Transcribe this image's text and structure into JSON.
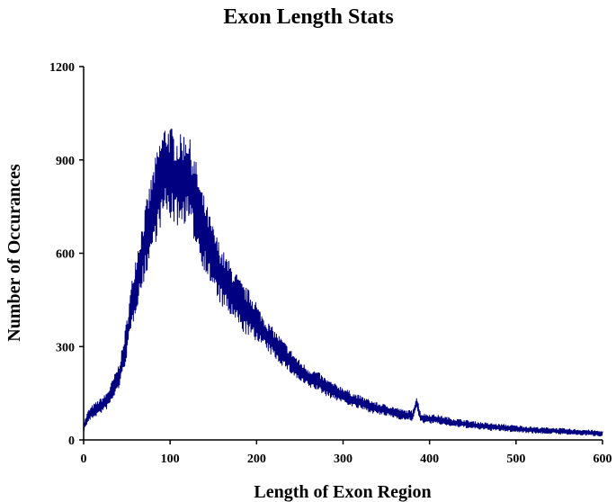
{
  "chart_data": {
    "type": "line",
    "title": "Exon Length Stats",
    "xlabel": "Length of Exon Region",
    "ylabel": "Number of Occurances",
    "xlim": [
      0,
      600
    ],
    "ylim": [
      0,
      1200
    ],
    "xticks": [
      "0",
      "100",
      "200",
      "300",
      "400",
      "500",
      "600"
    ],
    "yticks": [
      "0",
      "300",
      "600",
      "900",
      "1200"
    ],
    "grid": false,
    "legend": "none",
    "series": [
      {
        "color": "#000080",
        "x": [
          0,
          5,
          10,
          15,
          20,
          25,
          30,
          35,
          40,
          45,
          50,
          55,
          60,
          65,
          70,
          75,
          80,
          85,
          90,
          95,
          100,
          105,
          110,
          115,
          120,
          125,
          130,
          135,
          140,
          145,
          150,
          155,
          160,
          165,
          170,
          175,
          180,
          185,
          190,
          195,
          200,
          210,
          220,
          230,
          240,
          250,
          260,
          270,
          280,
          290,
          300,
          310,
          320,
          330,
          340,
          350,
          360,
          370,
          380,
          385,
          390,
          400,
          410,
          420,
          430,
          440,
          450,
          460,
          470,
          480,
          490,
          500,
          510,
          520,
          530,
          540,
          550,
          560,
          570,
          580,
          590,
          600
        ],
        "y": [
          40,
          75,
          90,
          100,
          110,
          120,
          140,
          170,
          200,
          250,
          330,
          420,
          500,
          560,
          620,
          680,
          740,
          790,
          840,
          870,
          860,
          840,
          830,
          840,
          850,
          800,
          760,
          700,
          660,
          620,
          580,
          550,
          520,
          500,
          480,
          460,
          440,
          420,
          410,
          395,
          380,
          340,
          310,
          280,
          250,
          220,
          200,
          190,
          170,
          155,
          145,
          130,
          120,
          110,
          100,
          95,
          88,
          80,
          78,
          120,
          70,
          68,
          65,
          60,
          55,
          52,
          48,
          45,
          42,
          40,
          38,
          36,
          34,
          32,
          30,
          30,
          28,
          26,
          25,
          24,
          22,
          20
        ]
      }
    ]
  }
}
